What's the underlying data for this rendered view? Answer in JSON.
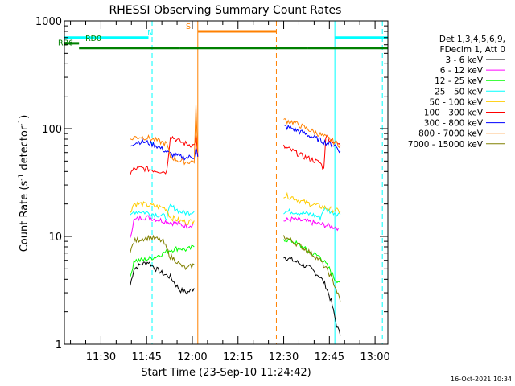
{
  "chart_data": {
    "type": "line",
    "title": "RHESSI Observing Summary Count Rates",
    "xlabel": "Start Time (23-Sep-10 11:24:42)",
    "ylabel_main": "Count Rate (s",
    "ylabel_exp1": "-1",
    "ylabel_mid": " detector",
    "ylabel_exp2": "-1",
    "ylabel_end": ")",
    "y_scale": "log",
    "ylim": [
      1,
      1000
    ],
    "xlim_minutes": [
      11.3,
      13.07
    ],
    "x_ticks": [
      {
        "t": 11.5,
        "label": "11:30"
      },
      {
        "t": 11.75,
        "label": "11:45"
      },
      {
        "t": 12.0,
        "label": "12:00"
      },
      {
        "t": 12.25,
        "label": "12:15"
      },
      {
        "t": 12.5,
        "label": "12:30"
      },
      {
        "t": 12.75,
        "label": "12:45"
      },
      {
        "t": 13.0,
        "label": "13:00"
      }
    ],
    "y_ticks": [
      {
        "v": 1,
        "label": "1"
      },
      {
        "v": 10,
        "label": "10"
      },
      {
        "v": 100,
        "label": "100"
      },
      {
        "v": 1000,
        "label": "1000"
      }
    ],
    "legend_header": [
      "Det 1,3,4,5,6,9,",
      "FDecim 1, Att 0"
    ],
    "legend_placement": "right",
    "series": [
      {
        "name": "3 - 6 keV",
        "color": "#000000",
        "points": [
          [
            11.66,
            3.5
          ],
          [
            11.68,
            5
          ],
          [
            11.72,
            5.5
          ],
          [
            11.76,
            5.8
          ],
          [
            11.8,
            5.0
          ],
          [
            11.84,
            4.5
          ],
          [
            11.88,
            4.2
          ],
          [
            11.93,
            3.2
          ],
          [
            11.97,
            3.0
          ],
          [
            12.01,
            3.3
          ],
          [
            12.5,
            6.5
          ],
          [
            12.55,
            6.0
          ],
          [
            12.6,
            5.5
          ],
          [
            12.65,
            5.0
          ],
          [
            12.7,
            4.2
          ],
          [
            12.73,
            3.5
          ],
          [
            12.76,
            2.5
          ],
          [
            12.79,
            1.5
          ],
          [
            12.81,
            1.2
          ]
        ]
      },
      {
        "name": "6 - 12 keV",
        "color": "#ff00ff",
        "points": [
          [
            11.66,
            10
          ],
          [
            11.68,
            14
          ],
          [
            11.72,
            15
          ],
          [
            11.76,
            15
          ],
          [
            11.8,
            14.5
          ],
          [
            11.84,
            14
          ],
          [
            11.88,
            13.5
          ],
          [
            11.93,
            13
          ],
          [
            11.97,
            12.5
          ],
          [
            12.01,
            13
          ],
          [
            12.5,
            14
          ],
          [
            12.55,
            14.5
          ],
          [
            12.6,
            14
          ],
          [
            12.65,
            13.5
          ],
          [
            12.7,
            13
          ],
          [
            12.75,
            12.5
          ],
          [
            12.8,
            12
          ]
        ]
      },
      {
        "name": "12 - 25 keV",
        "color": "#00ff00",
        "points": [
          [
            11.66,
            4
          ],
          [
            11.68,
            6
          ],
          [
            11.72,
            6
          ],
          [
            11.76,
            6.2
          ],
          [
            11.8,
            6.5
          ],
          [
            11.84,
            7
          ],
          [
            11.88,
            7.5
          ],
          [
            11.93,
            7.8
          ],
          [
            11.97,
            7.5
          ],
          [
            12.01,
            8
          ],
          [
            12.5,
            9.5
          ],
          [
            12.55,
            9.0
          ],
          [
            12.6,
            8.0
          ],
          [
            12.65,
            7.0
          ],
          [
            12.7,
            6.5
          ],
          [
            12.75,
            5.0
          ],
          [
            12.78,
            4.0
          ],
          [
            12.81,
            3.8
          ]
        ]
      },
      {
        "name": "25 - 50 keV",
        "color": "#00ffff",
        "points": [
          [
            11.66,
            15
          ],
          [
            11.68,
            17
          ],
          [
            11.72,
            17
          ],
          [
            11.76,
            16.5
          ],
          [
            11.8,
            16
          ],
          [
            11.84,
            15.5
          ],
          [
            11.86,
            15
          ],
          [
            11.88,
            19
          ],
          [
            11.91,
            18
          ],
          [
            11.93,
            17
          ],
          [
            11.97,
            16.5
          ],
          [
            12.01,
            17
          ],
          [
            12.5,
            17
          ],
          [
            12.55,
            17
          ],
          [
            12.6,
            16.5
          ],
          [
            12.65,
            16
          ],
          [
            12.7,
            15
          ],
          [
            12.72,
            18
          ],
          [
            12.76,
            17
          ],
          [
            12.81,
            16
          ]
        ]
      },
      {
        "name": "50 - 100 keV",
        "color": "#ffcc00",
        "points": [
          [
            11.66,
            17
          ],
          [
            11.68,
            20
          ],
          [
            11.72,
            20
          ],
          [
            11.76,
            19.5
          ],
          [
            11.8,
            19
          ],
          [
            11.84,
            18.5
          ],
          [
            11.86,
            18
          ],
          [
            11.88,
            15
          ],
          [
            11.91,
            14.5
          ],
          [
            11.93,
            14
          ],
          [
            11.97,
            13.5
          ],
          [
            12.01,
            14
          ],
          [
            12.5,
            24
          ],
          [
            12.55,
            23
          ],
          [
            12.6,
            21
          ],
          [
            12.65,
            20
          ],
          [
            12.7,
            19
          ],
          [
            12.75,
            18
          ],
          [
            12.78,
            17.5
          ],
          [
            12.81,
            17
          ]
        ]
      },
      {
        "name": "100 - 300 keV",
        "color": "#ff0000",
        "points": [
          [
            11.66,
            38
          ],
          [
            11.68,
            42
          ],
          [
            11.72,
            43
          ],
          [
            11.76,
            42
          ],
          [
            11.8,
            41
          ],
          [
            11.84,
            40
          ],
          [
            11.86,
            40
          ],
          [
            11.88,
            86
          ],
          [
            11.91,
            80
          ],
          [
            11.93,
            76
          ],
          [
            11.97,
            72
          ],
          [
            12.01,
            70
          ],
          [
            12.02,
            85
          ],
          [
            12.03,
            55
          ],
          [
            12.5,
            68
          ],
          [
            12.55,
            62
          ],
          [
            12.6,
            56
          ],
          [
            12.65,
            52
          ],
          [
            12.7,
            48
          ],
          [
            12.72,
            42
          ],
          [
            12.73,
            85
          ],
          [
            12.76,
            78
          ],
          [
            12.8,
            72
          ],
          [
            12.81,
            69
          ]
        ]
      },
      {
        "name": "300 - 800 keV",
        "color": "#0000ff",
        "points": [
          [
            11.66,
            70
          ],
          [
            11.68,
            74
          ],
          [
            11.72,
            76
          ],
          [
            11.76,
            74
          ],
          [
            11.8,
            70
          ],
          [
            11.84,
            64
          ],
          [
            11.88,
            58
          ],
          [
            11.93,
            55
          ],
          [
            11.97,
            54
          ],
          [
            12.01,
            55
          ],
          [
            12.02,
            65
          ],
          [
            12.03,
            55
          ],
          [
            12.5,
            105
          ],
          [
            12.55,
            100
          ],
          [
            12.6,
            92
          ],
          [
            12.65,
            85
          ],
          [
            12.7,
            78
          ],
          [
            12.75,
            72
          ],
          [
            12.78,
            70
          ],
          [
            12.81,
            62
          ]
        ]
      },
      {
        "name": "800 - 7000 keV",
        "color": "#ff8000",
        "points": [
          [
            11.66,
            78
          ],
          [
            11.68,
            83
          ],
          [
            11.72,
            84
          ],
          [
            11.76,
            82
          ],
          [
            11.8,
            78
          ],
          [
            11.84,
            74
          ],
          [
            11.86,
            72
          ],
          [
            11.88,
            55
          ],
          [
            11.91,
            52
          ],
          [
            11.93,
            50
          ],
          [
            11.97,
            49
          ],
          [
            12.01,
            50
          ],
          [
            12.02,
            160
          ],
          [
            12.03,
            60
          ],
          [
            12.5,
            120
          ],
          [
            12.55,
            115
          ],
          [
            12.6,
            105
          ],
          [
            12.65,
            96
          ],
          [
            12.7,
            88
          ],
          [
            12.75,
            80
          ],
          [
            12.78,
            75
          ],
          [
            12.81,
            70
          ]
        ]
      },
      {
        "name": "7000 - 15000 keV",
        "color": "#808000",
        "points": [
          [
            11.66,
            7
          ],
          [
            11.68,
            9
          ],
          [
            11.72,
            9.5
          ],
          [
            11.76,
            9.8
          ],
          [
            11.8,
            9.5
          ],
          [
            11.84,
            9
          ],
          [
            11.88,
            6.5
          ],
          [
            11.91,
            6
          ],
          [
            11.93,
            5.5
          ],
          [
            11.97,
            5
          ],
          [
            12.01,
            5.5
          ],
          [
            12.5,
            10
          ],
          [
            12.55,
            9
          ],
          [
            12.6,
            8
          ],
          [
            12.65,
            7
          ],
          [
            12.7,
            6
          ],
          [
            12.75,
            4.5
          ],
          [
            12.78,
            3.5
          ],
          [
            12.81,
            2.5
          ]
        ]
      }
    ],
    "flag_bars": [
      {
        "label": "N",
        "color": "#00ffff",
        "level": 700,
        "label_at": 11.79,
        "segments": [
          [
            11.3,
            11.76
          ],
          [
            12.78,
            13.07
          ]
        ]
      },
      {
        "label": "S",
        "color": "#ff8000",
        "level": 800,
        "label_at": 12.0,
        "segments": [
          [
            12.03,
            12.46
          ]
        ]
      },
      {
        "label": "RD0",
        "color": "#008000",
        "level": 620,
        "label_at": 11.45,
        "segments": [
          [
            11.3,
            11.38
          ]
        ]
      },
      {
        "label": "RB6",
        "color": "#008000",
        "level": 560,
        "label_at": 11.3,
        "segments": [
          [
            11.38,
            11.93
          ],
          [
            11.93,
            12.46
          ],
          [
            12.46,
            12.63
          ],
          [
            12.63,
            13.07
          ]
        ]
      }
    ],
    "vertical_markers": [
      {
        "t": 11.3,
        "color": "#00ffff",
        "style": "solid"
      },
      {
        "t": 11.78,
        "color": "#00ffff",
        "style": "dashed"
      },
      {
        "t": 12.03,
        "color": "#ff8000",
        "style": "solid"
      },
      {
        "t": 12.46,
        "color": "#ff8000",
        "style": "dashed"
      },
      {
        "t": 12.78,
        "color": "#00ffff",
        "style": "solid"
      },
      {
        "t": 13.04,
        "color": "#00ffff",
        "style": "dashed"
      }
    ],
    "grid": false
  },
  "footer_stamp": "16-Oct-2021 10:34"
}
